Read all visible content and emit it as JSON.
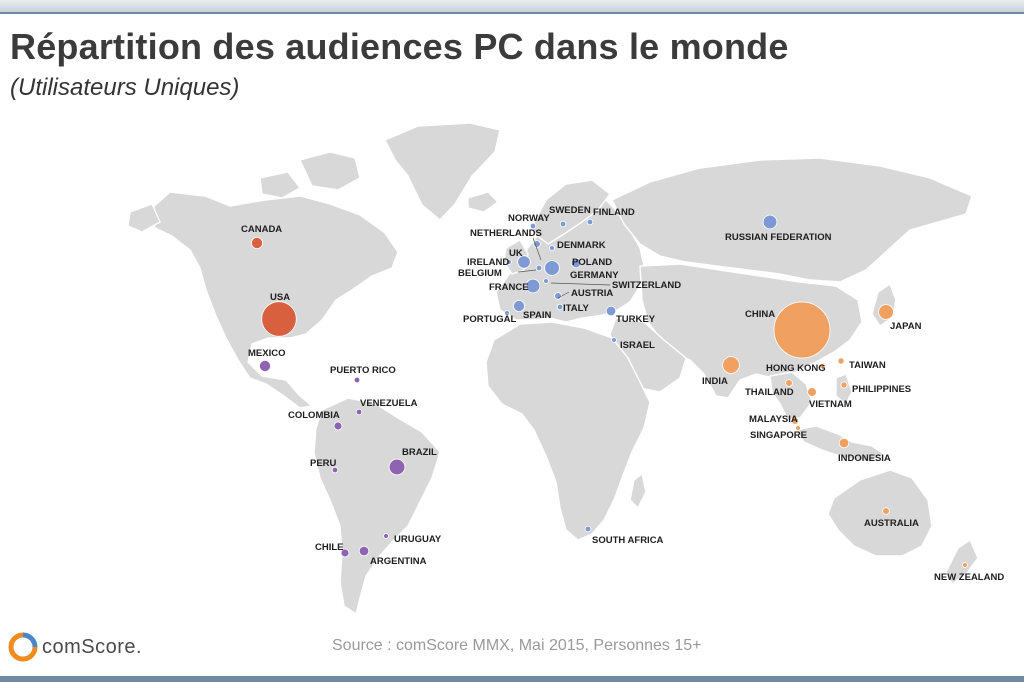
{
  "title": "Répartition des audiences PC dans le monde",
  "subtitle": "(Utilisateurs Uniques)",
  "source": "Source : comScore MMX, Mai 2015, Personnes 15+",
  "logo_text": "comScore.",
  "colors": {
    "north_america": "#d9603f",
    "latin_america": "#8e64b2",
    "europe_mea": "#7d9ad4",
    "asia_pacific": "#f0a060",
    "land": "#d8d8d8"
  },
  "chart_data": {
    "type": "bubble-map",
    "title": "Répartition des audiences PC dans le monde",
    "subtitle": "(Utilisateurs Uniques)",
    "size_encoding": "relative PC audience (unique users)",
    "points": [
      {
        "label": "CANADA",
        "group": "north_america",
        "size": 4
      },
      {
        "label": "USA",
        "group": "north_america",
        "size": 38
      },
      {
        "label": "MEXICO",
        "group": "latin_america",
        "size": 4
      },
      {
        "label": "PUERTO RICO",
        "group": "latin_america",
        "size": 1
      },
      {
        "label": "VENEZUELA",
        "group": "latin_america",
        "size": 1
      },
      {
        "label": "COLOMBIA",
        "group": "latin_america",
        "size": 2
      },
      {
        "label": "PERU",
        "group": "latin_america",
        "size": 1
      },
      {
        "label": "BRAZIL",
        "group": "latin_america",
        "size": 8
      },
      {
        "label": "CHILE",
        "group": "latin_america",
        "size": 2
      },
      {
        "label": "ARGENTINA",
        "group": "latin_america",
        "size": 3
      },
      {
        "label": "URUGUAY",
        "group": "latin_america",
        "size": 0.5
      },
      {
        "label": "NORWAY",
        "group": "europe_mea",
        "size": 1
      },
      {
        "label": "SWEDEN",
        "group": "europe_mea",
        "size": 1
      },
      {
        "label": "FINLAND",
        "group": "europe_mea",
        "size": 1
      },
      {
        "label": "NETHERLANDS",
        "group": "europe_mea",
        "size": 1.5
      },
      {
        "label": "DENMARK",
        "group": "europe_mea",
        "size": 0.7
      },
      {
        "label": "UK",
        "group": "europe_mea",
        "size": 5
      },
      {
        "label": "IRELAND",
        "group": "europe_mea",
        "size": 0.5
      },
      {
        "label": "BELGIUM",
        "group": "europe_mea",
        "size": 1
      },
      {
        "label": "POLAND",
        "group": "europe_mea",
        "size": 3
      },
      {
        "label": "GERMANY",
        "group": "europe_mea",
        "size": 7
      },
      {
        "label": "SWITZERLAND",
        "group": "europe_mea",
        "size": 0.8
      },
      {
        "label": "FRANCE",
        "group": "europe_mea",
        "size": 6
      },
      {
        "label": "AUSTRIA",
        "group": "europe_mea",
        "size": 1.5
      },
      {
        "label": "PORTUGAL",
        "group": "europe_mea",
        "size": 0.8
      },
      {
        "label": "SPAIN",
        "group": "europe_mea",
        "size": 4
      },
      {
        "label": "ITALY",
        "group": "europe_mea",
        "size": 1
      },
      {
        "label": "TURKEY",
        "group": "europe_mea",
        "size": 3
      },
      {
        "label": "ISRAEL",
        "group": "europe_mea",
        "size": 0.5
      },
      {
        "label": "SOUTH AFRICA",
        "group": "europe_mea",
        "size": 1
      },
      {
        "label": "RUSSIAN FEDERATION",
        "group": "europe_mea",
        "size": 6
      },
      {
        "label": "CHINA",
        "group": "asia_pacific",
        "size": 100
      },
      {
        "label": "JAPAN",
        "group": "asia_pacific",
        "size": 7
      },
      {
        "label": "INDIA",
        "group": "asia_pacific",
        "size": 9
      },
      {
        "label": "HONG KONG",
        "group": "asia_pacific",
        "size": 0.6
      },
      {
        "label": "TAIWAN",
        "group": "asia_pacific",
        "size": 1.2
      },
      {
        "label": "THAILAND",
        "group": "asia_pacific",
        "size": 1.5
      },
      {
        "label": "PHILIPPINES",
        "group": "asia_pacific",
        "size": 1.2
      },
      {
        "label": "VIETNAM",
        "group": "asia_pacific",
        "size": 2.5
      },
      {
        "label": "MALAYSIA",
        "group": "asia_pacific",
        "size": 1.5
      },
      {
        "label": "SINGAPORE",
        "group": "asia_pacific",
        "size": 0.5
      },
      {
        "label": "INDONESIA",
        "group": "asia_pacific",
        "size": 3
      },
      {
        "label": "AUSTRALIA",
        "group": "asia_pacific",
        "size": 1.5
      },
      {
        "label": "NEW ZEALAND",
        "group": "asia_pacific",
        "size": 0.5
      }
    ]
  }
}
